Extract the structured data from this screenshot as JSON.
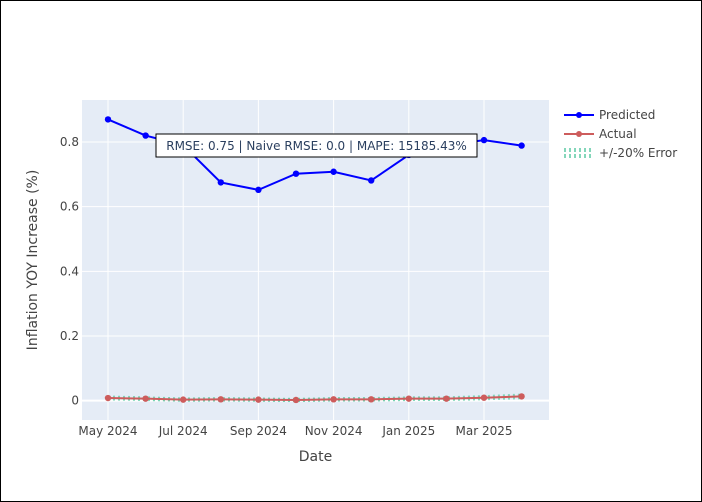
{
  "chart_data": {
    "type": "line",
    "xlabel": "Date",
    "ylabel": "Inflation YOY Increase (%)",
    "x_tick_labels": [
      "May 2024",
      "Jul 2024",
      "Sep 2024",
      "Nov 2024",
      "Jan 2025",
      "Mar 2025"
    ],
    "y_ticks": [
      0,
      0.2,
      0.4,
      0.6,
      0.8
    ],
    "y_tick_labels": [
      "0",
      "0.2",
      "0.4",
      "0.6",
      "0.8"
    ],
    "ylim": [
      -0.06,
      0.93
    ],
    "grid": true,
    "legend_position": "top-right",
    "annotation": "RMSE: 0.75 | Naive RMSE: 0.0 | MAPE: 15185.43%",
    "x": [
      "2024-05",
      "2024-06",
      "2024-07",
      "2024-08",
      "2024-09",
      "2024-10",
      "2024-11",
      "2024-12",
      "2025-01",
      "2025-02",
      "2025-03",
      "2025-04"
    ],
    "series": [
      {
        "name": "Predicted",
        "color": "#0000ff",
        "marker": "circle",
        "values": [
          0.87,
          0.82,
          0.79,
          0.675,
          0.652,
          0.702,
          0.708,
          0.681,
          0.76,
          0.79,
          0.806,
          0.789
        ]
      },
      {
        "name": "Actual",
        "color": "#cd5c5c",
        "marker": "circle",
        "values": [
          0.008,
          0.006,
          0.003,
          0.004,
          0.003,
          0.002,
          0.004,
          0.004,
          0.006,
          0.006,
          0.009,
          0.013
        ]
      },
      {
        "name": "+/-20% Error",
        "color": "#66cdaa",
        "style": "dotted-band",
        "upper": [
          0.0096,
          0.0072,
          0.0036,
          0.0048,
          0.0036,
          0.0024,
          0.0048,
          0.0048,
          0.0072,
          0.0072,
          0.0108,
          0.0156
        ],
        "lower": [
          0.0064,
          0.0048,
          0.0024,
          0.0032,
          0.0024,
          0.0016,
          0.0032,
          0.0032,
          0.0048,
          0.0048,
          0.0072,
          0.0104
        ]
      }
    ]
  }
}
